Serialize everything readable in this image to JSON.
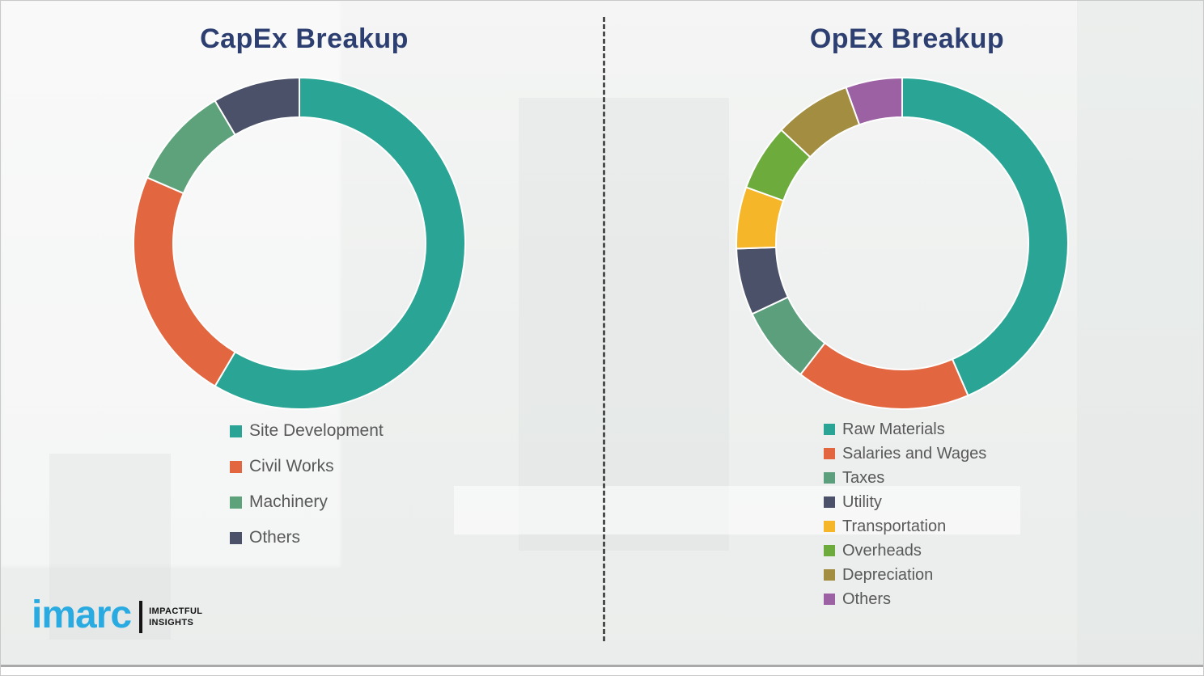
{
  "titles_color": "#2d3f70",
  "legend_text_color": "#595959",
  "chart_data": [
    {
      "type": "donut",
      "title": "CapEx Breakup",
      "categories": [
        "Site Development",
        "Civil Works",
        "Machinery",
        "Others"
      ],
      "values": [
        58.5,
        23,
        10,
        8.5
      ],
      "value_unit": "percent-of-ring (estimated from arc angles, no numeric labels shown)",
      "colors": [
        "#2aa495",
        "#e2663f",
        "#5da27a",
        "#4a5168"
      ],
      "start_angle_deg": 0,
      "direction": "clockwise",
      "legend_position": "below-left"
    },
    {
      "type": "donut",
      "title": "OpEx Breakup",
      "categories": [
        "Raw Materials",
        "Salaries and Wages",
        "Taxes",
        "Utility",
        "Transportation",
        "Overheads",
        "Depreciation",
        "Others"
      ],
      "values": [
        43.5,
        17,
        7.5,
        6.5,
        6,
        6.5,
        7.5,
        5.5
      ],
      "value_unit": "percent-of-ring (estimated from arc angles, no numeric labels shown)",
      "colors": [
        "#2aa495",
        "#e2663f",
        "#5b9f7d",
        "#4a5168",
        "#f5b62a",
        "#6cab3c",
        "#a28d41",
        "#9c61a3"
      ],
      "start_angle_deg": 0,
      "direction": "clockwise",
      "legend_position": "below-left"
    }
  ],
  "logo": {
    "brand": "imarc",
    "brand_color": "#29abe2",
    "tagline_line1": "IMPACTFUL",
    "tagline_line2": "INSIGHTS"
  }
}
